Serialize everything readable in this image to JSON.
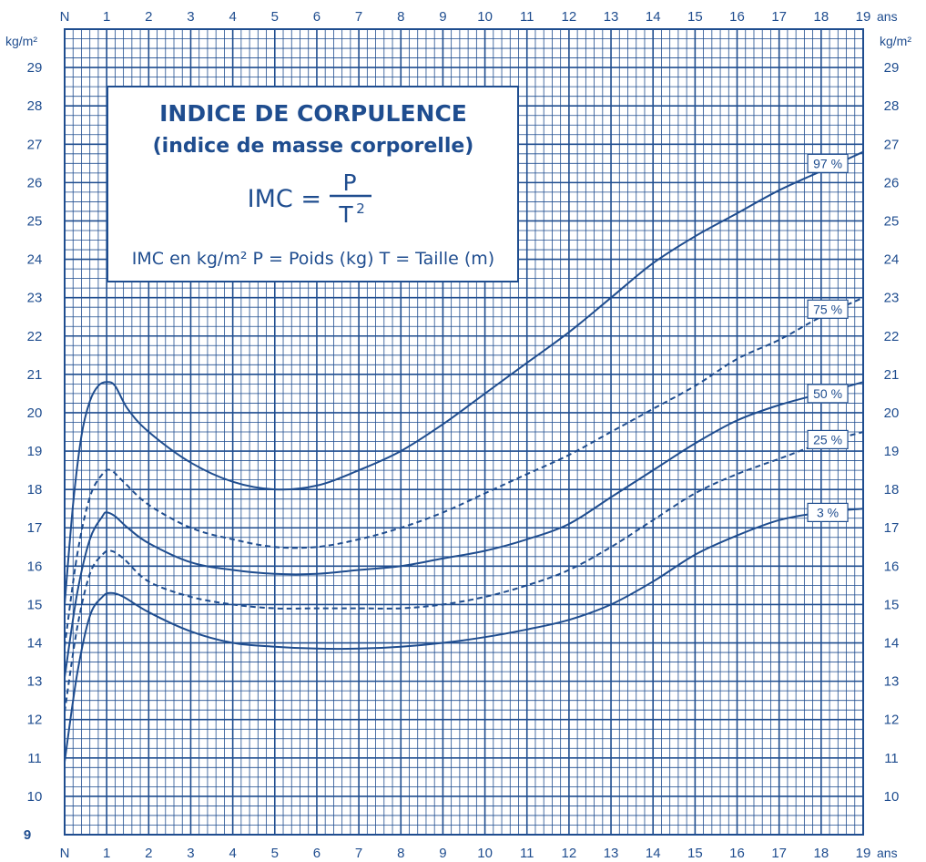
{
  "chart_data": {
    "type": "line",
    "title": "INDICE DE CORPULENCE",
    "subtitle": "(indice de masse corporelle)",
    "formula": {
      "lhs": "IMC =",
      "numerator": "P",
      "denominator": "T",
      "exponent": "2"
    },
    "legend_line": "IMC en kg/m²  P = Poids (kg)  T = Taille (m)",
    "xlabel": "ans",
    "ylabel": "kg/m²",
    "x_ticks": [
      "N",
      "1",
      "2",
      "3",
      "4",
      "5",
      "6",
      "7",
      "8",
      "9",
      "10",
      "11",
      "12",
      "13",
      "14",
      "15",
      "16",
      "17",
      "18",
      "19"
    ],
    "y_ticks": [
      "10",
      "11",
      "12",
      "13",
      "14",
      "15",
      "16",
      "17",
      "18",
      "19",
      "20",
      "21",
      "22",
      "23",
      "24",
      "25",
      "26",
      "27",
      "28",
      "29"
    ],
    "bottom_left_label": "9",
    "xlim": [
      0,
      19
    ],
    "ylim": [
      9,
      30
    ],
    "grid": true,
    "color": "#1f4d8f",
    "series": [
      {
        "name": "97 %",
        "dashed": false,
        "label_at": [
          18.2,
          26.5
        ],
        "points": [
          [
            0,
            15.0
          ],
          [
            0.2,
            17.6
          ],
          [
            0.4,
            19.4
          ],
          [
            0.6,
            20.3
          ],
          [
            0.8,
            20.7
          ],
          [
            1,
            20.8
          ],
          [
            1.2,
            20.7
          ],
          [
            1.5,
            20.1
          ],
          [
            2,
            19.5
          ],
          [
            3,
            18.7
          ],
          [
            4,
            18.2
          ],
          [
            5,
            18.0
          ],
          [
            6,
            18.1
          ],
          [
            7,
            18.5
          ],
          [
            8,
            19.0
          ],
          [
            9,
            19.7
          ],
          [
            10,
            20.5
          ],
          [
            11,
            21.3
          ],
          [
            12,
            22.1
          ],
          [
            13,
            23.0
          ],
          [
            14,
            23.9
          ],
          [
            15,
            24.6
          ],
          [
            16,
            25.2
          ],
          [
            17,
            25.8
          ],
          [
            18,
            26.3
          ],
          [
            19,
            26.8
          ]
        ]
      },
      {
        "name": "75 %",
        "dashed": true,
        "label_at": [
          18.2,
          22.7
        ],
        "points": [
          [
            0,
            13.9
          ],
          [
            0.3,
            16.3
          ],
          [
            0.6,
            17.8
          ],
          [
            0.9,
            18.4
          ],
          [
            1.1,
            18.5
          ],
          [
            1.4,
            18.2
          ],
          [
            2,
            17.6
          ],
          [
            3,
            17.0
          ],
          [
            4,
            16.7
          ],
          [
            5,
            16.5
          ],
          [
            6,
            16.5
          ],
          [
            7,
            16.7
          ],
          [
            8,
            17.0
          ],
          [
            9,
            17.4
          ],
          [
            10,
            17.9
          ],
          [
            11,
            18.4
          ],
          [
            12,
            18.9
          ],
          [
            13,
            19.5
          ],
          [
            14,
            20.1
          ],
          [
            15,
            20.7
          ],
          [
            16,
            21.4
          ],
          [
            17,
            21.9
          ],
          [
            18,
            22.5
          ],
          [
            19,
            23.0
          ]
        ]
      },
      {
        "name": "50 %",
        "dashed": false,
        "label_at": [
          18.2,
          20.5
        ],
        "points": [
          [
            0,
            13.1
          ],
          [
            0.3,
            15.3
          ],
          [
            0.6,
            16.7
          ],
          [
            0.9,
            17.3
          ],
          [
            1,
            17.4
          ],
          [
            1.2,
            17.3
          ],
          [
            1.5,
            17.0
          ],
          [
            2,
            16.6
          ],
          [
            3,
            16.1
          ],
          [
            4,
            15.9
          ],
          [
            5,
            15.8
          ],
          [
            6,
            15.8
          ],
          [
            7,
            15.9
          ],
          [
            8,
            16.0
          ],
          [
            9,
            16.2
          ],
          [
            10,
            16.4
          ],
          [
            11,
            16.7
          ],
          [
            12,
            17.1
          ],
          [
            13,
            17.8
          ],
          [
            14,
            18.5
          ],
          [
            15,
            19.2
          ],
          [
            16,
            19.8
          ],
          [
            17,
            20.2
          ],
          [
            18,
            20.5
          ],
          [
            19,
            20.8
          ]
        ]
      },
      {
        "name": "25 %",
        "dashed": true,
        "label_at": [
          18.2,
          19.3
        ],
        "points": [
          [
            0,
            12.2
          ],
          [
            0.3,
            14.4
          ],
          [
            0.6,
            15.8
          ],
          [
            0.9,
            16.3
          ],
          [
            1.1,
            16.4
          ],
          [
            1.4,
            16.2
          ],
          [
            2,
            15.6
          ],
          [
            3,
            15.2
          ],
          [
            4,
            15.0
          ],
          [
            5,
            14.9
          ],
          [
            6,
            14.9
          ],
          [
            7,
            14.9
          ],
          [
            8,
            14.9
          ],
          [
            9,
            15.0
          ],
          [
            10,
            15.2
          ],
          [
            11,
            15.5
          ],
          [
            12,
            15.9
          ],
          [
            13,
            16.5
          ],
          [
            14,
            17.2
          ],
          [
            15,
            17.9
          ],
          [
            16,
            18.4
          ],
          [
            17,
            18.8
          ],
          [
            18,
            19.2
          ],
          [
            19,
            19.5
          ]
        ]
      },
      {
        "name": "3 %",
        "dashed": false,
        "label_at": [
          18.2,
          17.4
        ],
        "points": [
          [
            0,
            10.9
          ],
          [
            0.3,
            13.2
          ],
          [
            0.6,
            14.7
          ],
          [
            0.9,
            15.2
          ],
          [
            1.1,
            15.3
          ],
          [
            1.4,
            15.2
          ],
          [
            2,
            14.8
          ],
          [
            3,
            14.3
          ],
          [
            4,
            14.0
          ],
          [
            5,
            13.9
          ],
          [
            6,
            13.85
          ],
          [
            7,
            13.85
          ],
          [
            8,
            13.9
          ],
          [
            9,
            14.0
          ],
          [
            10,
            14.15
          ],
          [
            11,
            14.35
          ],
          [
            12,
            14.6
          ],
          [
            13,
            15.0
          ],
          [
            14,
            15.6
          ],
          [
            15,
            16.3
          ],
          [
            16,
            16.8
          ],
          [
            17,
            17.2
          ],
          [
            18,
            17.4
          ],
          [
            19,
            17.5
          ]
        ]
      }
    ]
  }
}
